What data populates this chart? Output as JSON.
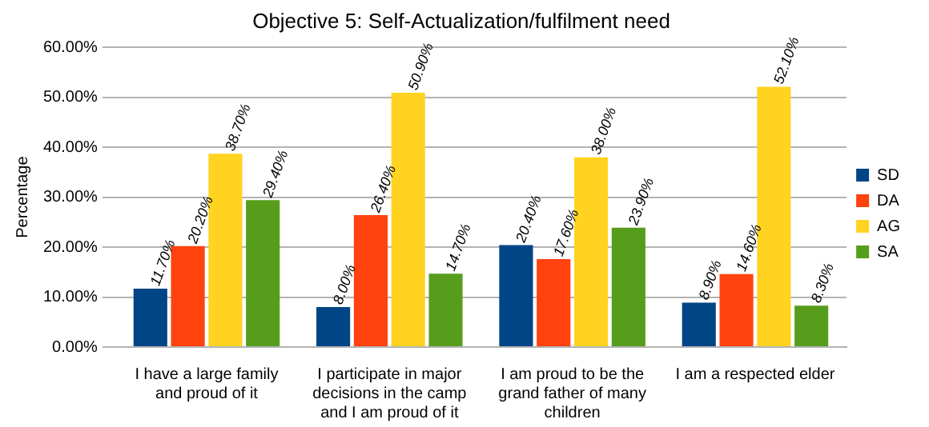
{
  "chart_data": {
    "type": "bar",
    "title": "Objective 5: Self-Actualization/fulfilment need",
    "ylabel": "Percentage",
    "categories": [
      "I have a large family and proud of it",
      "I participate in major decisions in the camp and I am proud of it",
      "I am proud to be the grand father of many children",
      "I am a respected elder"
    ],
    "series": [
      {
        "name": "SD",
        "color": "#004586",
        "values": [
          11.7,
          8.0,
          20.4,
          8.9
        ],
        "value_labels": [
          "11.70%",
          "8.00%",
          "20.40%",
          "8.90%"
        ]
      },
      {
        "name": "DA",
        "color": "#ff420e",
        "values": [
          20.2,
          26.4,
          17.6,
          14.6
        ],
        "value_labels": [
          "20.20%",
          "26.40%",
          "17.60%",
          "14.60%"
        ]
      },
      {
        "name": "AG",
        "color": "#ffd320",
        "values": [
          38.7,
          50.9,
          38.0,
          52.1
        ],
        "value_labels": [
          "38.70%",
          "50.90%",
          "38.00%",
          "52.10%"
        ]
      },
      {
        "name": "SA",
        "color": "#579d1c",
        "values": [
          29.4,
          14.7,
          23.9,
          8.3
        ],
        "value_labels": [
          "29.40%",
          "14.70%",
          "23.90%",
          "8.30%"
        ]
      }
    ],
    "ylim": [
      0,
      60
    ],
    "yticks": [
      {
        "value": 0,
        "label": "0.00%"
      },
      {
        "value": 10,
        "label": "10.00%"
      },
      {
        "value": 20,
        "label": "20.00%"
      },
      {
        "value": 30,
        "label": "30.00%"
      },
      {
        "value": 40,
        "label": "40.00%"
      },
      {
        "value": 50,
        "label": "50.00%"
      },
      {
        "value": 60,
        "label": "60.00%"
      }
    ],
    "grid": "y",
    "legend": "right"
  }
}
